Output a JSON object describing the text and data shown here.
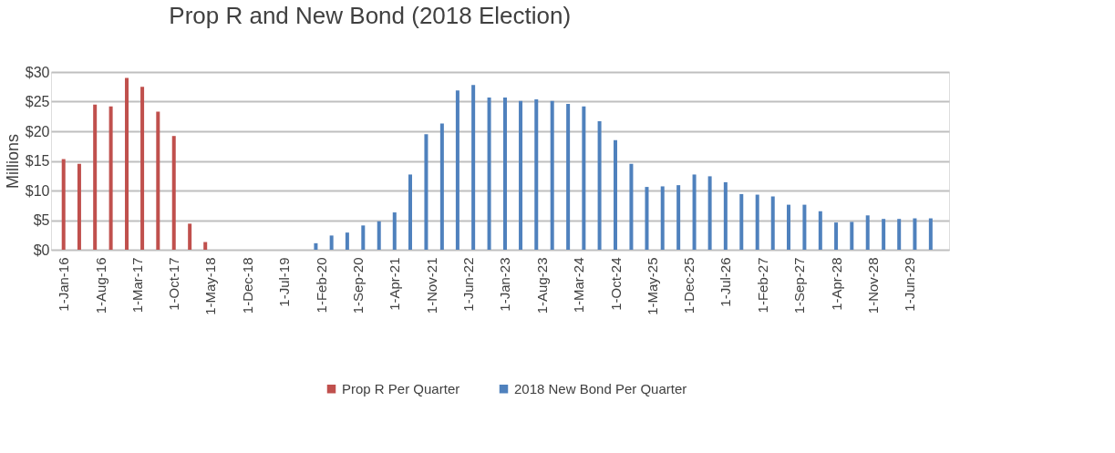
{
  "chart_data": {
    "type": "bar",
    "title": "Prop R and New Bond (2018 Election)",
    "ylabel": "Millions",
    "series": [
      {
        "name": "Prop R Per Quarter",
        "color": "#c0504d",
        "x": [
          "2016-01-01",
          "2016-04-01",
          "2016-07-01",
          "2016-10-01",
          "2017-01-01",
          "2017-04-01",
          "2017-07-01",
          "2017-10-01",
          "2018-01-01",
          "2018-04-01"
        ],
        "values": [
          15.3,
          14.5,
          24.5,
          24.2,
          29.0,
          27.5,
          23.3,
          19.2,
          4.4,
          1.3
        ]
      },
      {
        "name": "2018 New Bond Per Quarter",
        "color": "#4f81bd",
        "x": [
          "2020-01-01",
          "2020-04-01",
          "2020-07-01",
          "2020-10-01",
          "2021-01-01",
          "2021-04-01",
          "2021-07-01",
          "2021-10-01",
          "2022-01-01",
          "2022-04-01",
          "2022-07-01",
          "2022-10-01",
          "2023-01-01",
          "2023-04-01",
          "2023-07-01",
          "2023-10-01",
          "2024-01-01",
          "2024-04-01",
          "2024-07-01",
          "2024-10-01",
          "2025-01-01",
          "2025-04-01",
          "2025-07-01",
          "2025-10-01",
          "2026-01-01",
          "2026-04-01",
          "2026-07-01",
          "2026-10-01",
          "2027-01-01",
          "2027-04-01",
          "2027-07-01",
          "2027-10-01",
          "2028-01-01",
          "2028-04-01",
          "2028-07-01",
          "2028-10-01",
          "2029-01-01",
          "2029-04-01",
          "2029-07-01",
          "2029-10-01"
        ],
        "values": [
          1.1,
          2.4,
          2.9,
          4.1,
          4.8,
          6.3,
          12.7,
          19.5,
          21.3,
          26.9,
          27.8,
          25.7,
          25.7,
          25.1,
          25.4,
          25.1,
          24.6,
          24.2,
          21.7,
          18.5,
          14.5,
          10.6,
          10.7,
          10.9,
          12.7,
          12.4,
          11.4,
          9.4,
          9.3,
          9.0,
          7.6,
          7.6,
          6.5,
          4.6,
          4.7,
          5.8,
          5.2,
          5.2,
          5.3,
          5.3
        ]
      }
    ],
    "xlim": [
      "2015-11-16",
      "2029-12-20"
    ],
    "xticks": [
      {
        "value": "2016-01-01",
        "label": "1-Jan-16"
      },
      {
        "value": "2016-08-01",
        "label": "1-Aug-16"
      },
      {
        "value": "2017-03-01",
        "label": "1-Mar-17"
      },
      {
        "value": "2017-10-01",
        "label": "1-Oct-17"
      },
      {
        "value": "2018-05-01",
        "label": "1-May-18"
      },
      {
        "value": "2018-12-01",
        "label": "1-Dec-18"
      },
      {
        "value": "2019-07-01",
        "label": "1-Jul-19"
      },
      {
        "value": "2020-02-01",
        "label": "1-Feb-20"
      },
      {
        "value": "2020-09-01",
        "label": "1-Sep-20"
      },
      {
        "value": "2021-04-01",
        "label": "1-Apr-21"
      },
      {
        "value": "2021-11-01",
        "label": "1-Nov-21"
      },
      {
        "value": "2022-06-01",
        "label": "1-Jun-22"
      },
      {
        "value": "2023-01-01",
        "label": "1-Jan-23"
      },
      {
        "value": "2023-08-01",
        "label": "1-Aug-23"
      },
      {
        "value": "2024-03-01",
        "label": "1-Mar-24"
      },
      {
        "value": "2024-10-01",
        "label": "1-Oct-24"
      },
      {
        "value": "2025-05-01",
        "label": "1-May-25"
      },
      {
        "value": "2025-12-01",
        "label": "1-Dec-25"
      },
      {
        "value": "2026-07-01",
        "label": "1-Jul-26"
      },
      {
        "value": "2027-02-01",
        "label": "1-Feb-27"
      },
      {
        "value": "2027-09-01",
        "label": "1-Sep-27"
      },
      {
        "value": "2028-04-01",
        "label": "1-Apr-28"
      },
      {
        "value": "2028-11-01",
        "label": "1-Nov-28"
      },
      {
        "value": "2029-06-01",
        "label": "1-Jun-29"
      }
    ],
    "ylim": [
      0,
      30
    ],
    "yticks": [
      {
        "value": 0,
        "label": "$0"
      },
      {
        "value": 5,
        "label": "$5"
      },
      {
        "value": 10,
        "label": "$10"
      },
      {
        "value": 15,
        "label": "$15"
      },
      {
        "value": 20,
        "label": "$20"
      },
      {
        "value": 25,
        "label": "$25"
      },
      {
        "value": 30,
        "label": "$30"
      }
    ],
    "grid": "y",
    "legend": "bottom"
  }
}
